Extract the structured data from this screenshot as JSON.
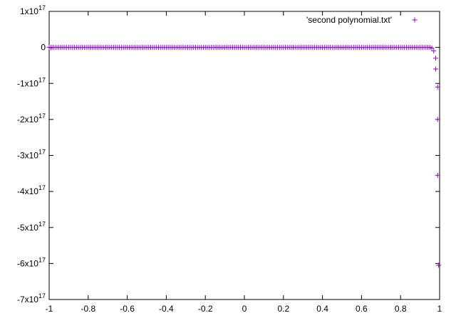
{
  "chart_data": {
    "type": "scatter",
    "title": "",
    "xlabel": "",
    "ylabel": "",
    "xlim": [
      -1,
      1
    ],
    "ylim": [
      -7e+17,
      1e+17
    ],
    "grid": false,
    "legend_position": "top-right",
    "marker": "+",
    "series_color": "#9400d3",
    "x_ticks": [
      {
        "value": -1,
        "label": "-1"
      },
      {
        "value": -0.8,
        "label": "-0.8"
      },
      {
        "value": -0.6,
        "label": "-0.6"
      },
      {
        "value": -0.4,
        "label": "-0.4"
      },
      {
        "value": -0.2,
        "label": "-0.2"
      },
      {
        "value": 0,
        "label": "0"
      },
      {
        "value": 0.2,
        "label": "0.2"
      },
      {
        "value": 0.4,
        "label": "0.4"
      },
      {
        "value": 0.6,
        "label": "0.6"
      },
      {
        "value": 0.8,
        "label": "0.8"
      },
      {
        "value": 1,
        "label": "1"
      }
    ],
    "y_ticks": [
      {
        "value": 1e+17,
        "mantissa": "1x10",
        "exponent": "17"
      },
      {
        "value": 0,
        "mantissa": "0",
        "exponent": ""
      },
      {
        "value": -1e+17,
        "mantissa": "-1x10",
        "exponent": "17"
      },
      {
        "value": -2e+17,
        "mantissa": "-2x10",
        "exponent": "17"
      },
      {
        "value": -3e+17,
        "mantissa": "-3x10",
        "exponent": "17"
      },
      {
        "value": -4e+17,
        "mantissa": "-4x10",
        "exponent": "17"
      },
      {
        "value": -5e+17,
        "mantissa": "-5x10",
        "exponent": "17"
      },
      {
        "value": -6e+17,
        "mantissa": "-6x10",
        "exponent": "17"
      },
      {
        "value": -7e+17,
        "mantissa": "-7x10",
        "exponent": "17"
      }
    ],
    "series": [
      {
        "name": "'second polynomial.txt'",
        "x_start": -1,
        "x_step": 0.01,
        "count": 195,
        "baseline_y": 0,
        "points": [
          {
            "x": -0.99,
            "y": -1000000000000000.0
          },
          {
            "x": 0.95,
            "y": 0
          },
          {
            "x": 0.96,
            "y": -2000000000000000.0
          },
          {
            "x": 0.97,
            "y": -1e+16
          },
          {
            "x": 0.98,
            "y": -3e+16
          },
          {
            "x": 0.98,
            "y": -6e+16
          },
          {
            "x": 0.99,
            "y": -1.1e+17
          },
          {
            "x": 0.99,
            "y": -2e+17
          },
          {
            "x": 0.99,
            "y": -3.55e+17
          },
          {
            "x": 0.995,
            "y": -6.05e+17
          }
        ]
      }
    ]
  }
}
